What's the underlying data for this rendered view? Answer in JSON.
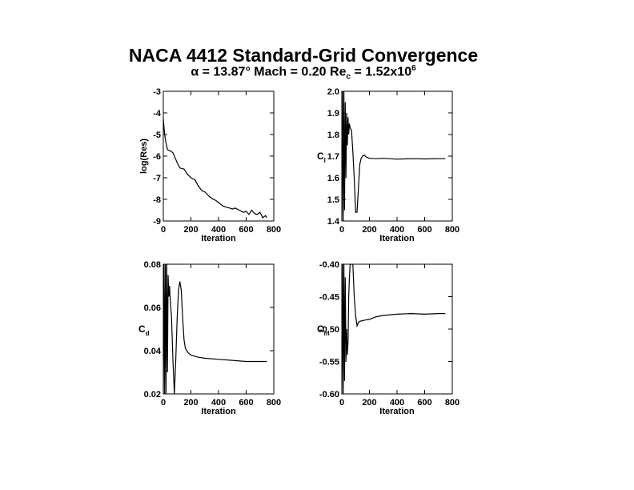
{
  "figure": {
    "title": "NACA 4412 Standard-Grid Convergence",
    "subtitle": {
      "alpha_symbol": "α",
      "alpha_text": " = 13.87°   Mach = 0.20   Re",
      "re_sub": "c",
      "re_text": " = 1.52x10",
      "re_sup": "6"
    }
  },
  "chart_data": [
    {
      "type": "line",
      "id": "res",
      "xlabel": "Iteration",
      "ylabel": "log(Res)",
      "xlim": [
        0,
        800
      ],
      "ylim": [
        -9,
        -3
      ],
      "xticks": [
        "0",
        "200",
        "400",
        "600",
        "800"
      ],
      "yticks": [
        "-9",
        "-8",
        "-7",
        "-6",
        "-5",
        "-4",
        "-3"
      ],
      "x": [
        0,
        10,
        20,
        30,
        50,
        70,
        100,
        120,
        150,
        170,
        200,
        230,
        250,
        280,
        300,
        330,
        350,
        380,
        400,
        430,
        450,
        480,
        500,
        520,
        550,
        580,
        600,
        620,
        640,
        660,
        680,
        700,
        720,
        740,
        750
      ],
      "y": [
        -4.3,
        -5.0,
        -5.4,
        -5.7,
        -5.75,
        -5.85,
        -6.3,
        -6.55,
        -6.6,
        -6.8,
        -7.0,
        -7.1,
        -7.35,
        -7.6,
        -7.65,
        -7.85,
        -7.95,
        -8.05,
        -8.15,
        -8.3,
        -8.35,
        -8.4,
        -8.45,
        -8.4,
        -8.5,
        -8.6,
        -8.55,
        -8.7,
        -8.5,
        -8.65,
        -8.7,
        -8.6,
        -8.85,
        -8.75,
        -8.85
      ]
    },
    {
      "type": "line",
      "id": "cl",
      "xlabel": "Iteration",
      "ylabel": "C",
      "ylabel_sub": "l",
      "xlim": [
        0,
        800
      ],
      "ylim": [
        1.4,
        2.0
      ],
      "xticks": [
        "0",
        "200",
        "400",
        "600",
        "800"
      ],
      "yticks": [
        "1.4",
        "1.5",
        "1.6",
        "1.7",
        "1.8",
        "1.9",
        "2.0"
      ],
      "x": [
        0,
        5,
        10,
        15,
        20,
        25,
        30,
        35,
        40,
        45,
        50,
        55,
        60,
        70,
        80,
        90,
        100,
        110,
        120,
        130,
        140,
        150,
        160,
        170,
        180,
        200,
        250,
        300,
        400,
        500,
        600,
        700,
        750
      ],
      "y": [
        1.4,
        2.0,
        1.4,
        2.0,
        1.45,
        1.95,
        1.6,
        1.9,
        1.75,
        1.88,
        1.8,
        1.85,
        1.83,
        1.82,
        1.72,
        1.6,
        1.44,
        1.44,
        1.55,
        1.66,
        1.69,
        1.7,
        1.705,
        1.7,
        1.695,
        1.69,
        1.688,
        1.69,
        1.686,
        1.688,
        1.687,
        1.688,
        1.688
      ]
    },
    {
      "type": "line",
      "id": "cd",
      "xlabel": "Iteration",
      "ylabel": "C",
      "ylabel_sub": "d",
      "xlim": [
        0,
        800
      ],
      "ylim": [
        0.02,
        0.08
      ],
      "xticks": [
        "0",
        "200",
        "400",
        "600",
        "800"
      ],
      "yticks": [
        "0.02",
        "0.04",
        "0.06",
        "0.08"
      ],
      "x": [
        0,
        5,
        10,
        15,
        20,
        25,
        30,
        35,
        40,
        45,
        50,
        60,
        70,
        80,
        90,
        100,
        110,
        120,
        130,
        140,
        150,
        160,
        180,
        200,
        250,
        300,
        400,
        500,
        600,
        700,
        750
      ],
      "y": [
        0.02,
        0.08,
        0.02,
        0.08,
        0.02,
        0.08,
        0.03,
        0.075,
        0.065,
        0.07,
        0.064,
        0.055,
        0.035,
        0.02,
        0.035,
        0.055,
        0.068,
        0.072,
        0.068,
        0.055,
        0.045,
        0.041,
        0.039,
        0.038,
        0.037,
        0.0365,
        0.036,
        0.0355,
        0.035,
        0.035,
        0.035
      ]
    },
    {
      "type": "line",
      "id": "cm",
      "xlabel": "Iteration",
      "ylabel": "C",
      "ylabel_sub": "m",
      "xlim": [
        0,
        800
      ],
      "ylim": [
        -0.6,
        -0.4
      ],
      "xticks": [
        "0",
        "200",
        "400",
        "600",
        "800"
      ],
      "yticks": [
        "-0.60",
        "-0.55",
        "-0.50",
        "-0.45",
        "-0.40"
      ],
      "x": [
        0,
        5,
        10,
        15,
        20,
        25,
        30,
        35,
        40,
        45,
        50,
        55,
        60,
        70,
        80,
        90,
        100,
        110,
        120,
        130,
        150,
        170,
        200,
        250,
        300,
        400,
        500,
        600,
        700,
        750
      ],
      "y": [
        -0.6,
        -0.4,
        -0.6,
        -0.4,
        -0.58,
        -0.42,
        -0.55,
        -0.5,
        -0.54,
        -0.52,
        -0.45,
        -0.42,
        -0.4,
        -0.4,
        -0.4,
        -0.45,
        -0.48,
        -0.495,
        -0.49,
        -0.488,
        -0.487,
        -0.486,
        -0.485,
        -0.481,
        -0.479,
        -0.477,
        -0.476,
        -0.477,
        -0.476,
        -0.476
      ]
    }
  ]
}
